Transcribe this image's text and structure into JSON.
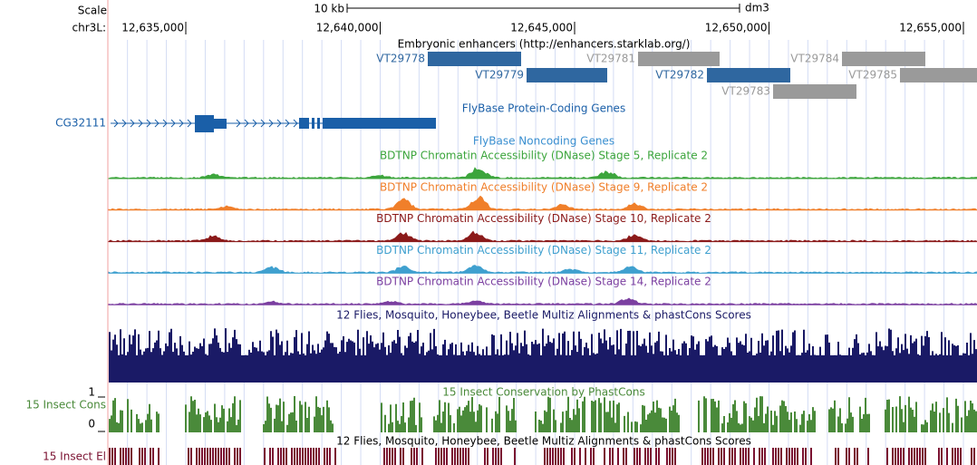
{
  "ruler": {
    "scale_label": "Scale",
    "scale_text": "10 kb",
    "assembly": "dm3",
    "chrom_label": "chr3L:",
    "positions": [
      "12,635,000",
      "12,640,000",
      "12,645,000",
      "12,650,000",
      "12,655,000"
    ]
  },
  "enhancers": {
    "title": "Embryonic enhancers (http://enhancers.starklab.org/)",
    "items": [
      {
        "label": "VT29778",
        "color": "#2f67a0"
      },
      {
        "label": "VT29779",
        "color": "#2f67a0"
      },
      {
        "label": "VT29781",
        "color": "#9a9a9a"
      },
      {
        "label": "VT29782",
        "color": "#2f67a0"
      },
      {
        "label": "VT29784",
        "color": "#9a9a9a"
      },
      {
        "label": "VT29783",
        "color": "#9a9a9a"
      },
      {
        "label": "VT29785",
        "color": "#9a9a9a"
      }
    ]
  },
  "genes": {
    "title": "FlyBase Protein-Coding Genes",
    "gene": "CG32111",
    "color": "#1a5fa8",
    "noncoding_title": "FlyBase Noncoding Genes"
  },
  "dnase_tracks": [
    {
      "title": "BDTNP Chromatin Accessibility (DNase) Stage 5, Replicate 2",
      "color": "#3ca53c"
    },
    {
      "title": "BDTNP Chromatin Accessibility (DNase) Stage 9, Replicate 2",
      "color": "#f07f2a"
    },
    {
      "title": "BDTNP Chromatin Accessibility (DNase) Stage 10, Replicate 2",
      "color": "#8b1a1a"
    },
    {
      "title": "BDTNP Chromatin Accessibility (DNase) Stage 11, Replicate 2",
      "color": "#3fa0cf"
    },
    {
      "title": "BDTNP Chromatin Accessibility (DNase) Stage 14, Replicate 2",
      "color": "#7b3fa0"
    }
  ],
  "conservation": {
    "multiz_title": "12 Flies, Mosquito, Honeybee, Beetle Multiz Alignments & phastCons Scores",
    "multiz_color": "#1a1a66",
    "phastcons_title": "15 Insect Conservation by PhastCons",
    "phastcons_label": "15 Insect Cons",
    "phastcons_color": "#4a8a3a",
    "y_max_label": "1",
    "y_min_label": "0",
    "elements_title": "12 Flies, Mosquito, Honeybee, Beetle Multiz Alignments & phastCons Scores",
    "elements_label": "15 Insect El",
    "elements_color": "#7a1030"
  }
}
